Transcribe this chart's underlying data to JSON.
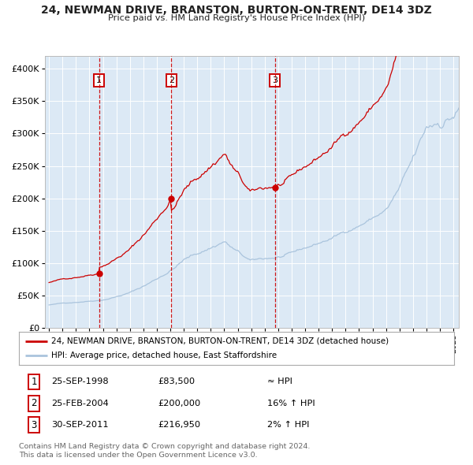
{
  "title": "24, NEWMAN DRIVE, BRANSTON, BURTON-ON-TRENT, DE14 3DZ",
  "subtitle": "Price paid vs. HM Land Registry's House Price Index (HPI)",
  "legend_line1": "24, NEWMAN DRIVE, BRANSTON, BURTON-ON-TRENT, DE14 3DZ (detached house)",
  "legend_line2": "HPI: Average price, detached house, East Staffordshire",
  "footer_line1": "Contains HM Land Registry data © Crown copyright and database right 2024.",
  "footer_line2": "This data is licensed under the Open Government Licence v3.0.",
  "sale_points": [
    {
      "date_t": 1998.7083,
      "price": 83500,
      "label": "1"
    },
    {
      "date_t": 2004.0833,
      "price": 200000,
      "label": "2"
    },
    {
      "date_t": 2011.75,
      "price": 216950,
      "label": "3"
    }
  ],
  "table_rows": [
    {
      "num": "1",
      "date": "25-SEP-1998",
      "price": "£83,500",
      "hpi": "≈ HPI"
    },
    {
      "num": "2",
      "date": "25-FEB-2004",
      "price": "£200,000",
      "hpi": "16% ↑ HPI"
    },
    {
      "num": "3",
      "date": "30-SEP-2011",
      "price": "£216,950",
      "hpi": "2% ↑ HPI"
    }
  ],
  "ylim": [
    0,
    420000
  ],
  "yticks": [
    0,
    50000,
    100000,
    150000,
    200000,
    250000,
    300000,
    350000,
    400000
  ],
  "ytick_labels": [
    "£0",
    "£50K",
    "£100K",
    "£150K",
    "£200K",
    "£250K",
    "£300K",
    "£350K",
    "£400K"
  ],
  "xlim_start": 1994.7,
  "xlim_end": 2025.4,
  "hpi_color": "#aac4dd",
  "price_color": "#cc0000",
  "sale_dot_color": "#cc0000",
  "vline_color": "#cc0000",
  "bg_color": "#dce9f5",
  "grid_color": "#ffffff",
  "box_color": "#cc0000",
  "title_color": "#222222",
  "legend_border": "#aaaaaa",
  "footer_color": "#666666"
}
